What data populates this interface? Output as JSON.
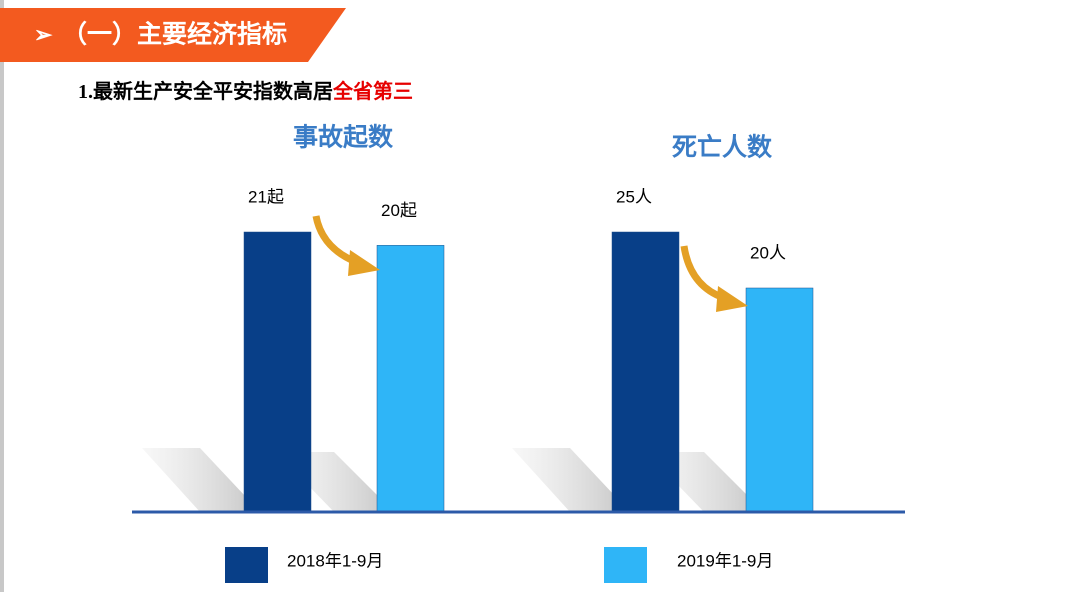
{
  "header": {
    "bullet": "➢",
    "title": "（一）主要经济指标"
  },
  "subtitle": {
    "text": "1.最新生产安全平安指数高居",
    "highlight": "全省第三"
  },
  "legend": {
    "items": [
      {
        "name": "2018年1-9月",
        "color": "#083f88"
      },
      {
        "name": "2019年1-9月",
        "color": "#2fb5f7"
      }
    ]
  },
  "chart_data": [
    {
      "type": "bar",
      "title": "事故起数",
      "values": [
        21,
        20
      ],
      "value_labels": [
        "21起",
        "20起"
      ]
    },
    {
      "type": "bar",
      "title": "死亡人数",
      "values": [
        25,
        20
      ],
      "value_labels": [
        "25人",
        "20人"
      ]
    }
  ]
}
